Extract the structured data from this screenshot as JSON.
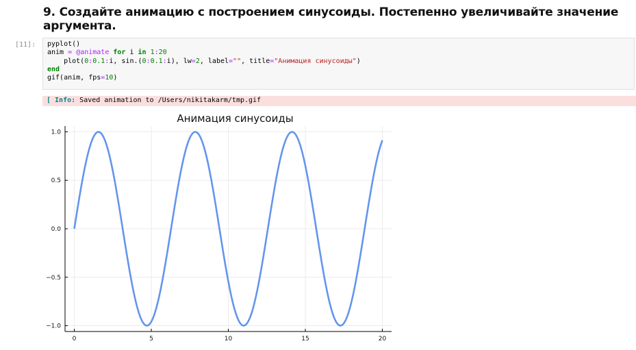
{
  "heading": "9. Создайте анимацию с построением синусоиды. Постепенно увеличивайте значение аргумента.",
  "cell": {
    "prompt": "[11]:",
    "code_lines": [
      [
        {
          "t": "pyplot()",
          "c": ""
        }
      ],
      [
        {
          "t": "anim ",
          "c": ""
        },
        {
          "t": "=",
          "c": "op"
        },
        {
          "t": " ",
          "c": ""
        },
        {
          "t": "@animate",
          "c": "macro"
        },
        {
          "t": " ",
          "c": ""
        },
        {
          "t": "for",
          "c": "kw"
        },
        {
          "t": " i ",
          "c": ""
        },
        {
          "t": "in",
          "c": "kw"
        },
        {
          "t": " ",
          "c": ""
        },
        {
          "t": "1",
          "c": "num"
        },
        {
          "t": ":",
          "c": "op"
        },
        {
          "t": "20",
          "c": "num"
        }
      ],
      [
        {
          "t": "    plot(",
          "c": ""
        },
        {
          "t": "0",
          "c": "num"
        },
        {
          "t": ":",
          "c": "op"
        },
        {
          "t": "0.1",
          "c": "num"
        },
        {
          "t": ":",
          "c": "op"
        },
        {
          "t": "i, sin.(",
          "c": ""
        },
        {
          "t": "0",
          "c": "num"
        },
        {
          "t": ":",
          "c": "op"
        },
        {
          "t": "0.1",
          "c": "num"
        },
        {
          "t": ":",
          "c": "op"
        },
        {
          "t": "i), lw",
          "c": ""
        },
        {
          "t": "=",
          "c": "op"
        },
        {
          "t": "2",
          "c": "num"
        },
        {
          "t": ", label",
          "c": ""
        },
        {
          "t": "=",
          "c": "op"
        },
        {
          "t": "\"\"",
          "c": "str"
        },
        {
          "t": ", title",
          "c": ""
        },
        {
          "t": "=",
          "c": "op"
        },
        {
          "t": "\"Анимация синусоиды\"",
          "c": "str"
        },
        {
          "t": ")",
          "c": ""
        }
      ],
      [
        {
          "t": "end",
          "c": "kw"
        }
      ],
      [
        {
          "t": "gif(anim, fps",
          "c": ""
        },
        {
          "t": "=",
          "c": "op"
        },
        {
          "t": "10",
          "c": "num"
        },
        {
          "t": ")",
          "c": ""
        }
      ]
    ]
  },
  "output": {
    "info_prefix": "[ Info:",
    "info_message": " Saved animation to /Users/nikitakarm/tmp.gif"
  },
  "chart_data": {
    "type": "line",
    "title": "Анимация синусоиды",
    "xlabel": "",
    "ylabel": "",
    "function": "sin(x)",
    "x_range": [
      0,
      20
    ],
    "x_step": 0.1,
    "xlim": [
      -0.6,
      20.6
    ],
    "ylim": [
      -1.06,
      1.06
    ],
    "x_ticks": [
      0,
      5,
      10,
      15,
      20
    ],
    "x_tick_labels": [
      "0",
      "5",
      "10",
      "15",
      "20"
    ],
    "y_ticks": [
      -1.0,
      -0.5,
      0.0,
      0.5,
      1.0
    ],
    "y_tick_labels": [
      "−1.0",
      "−0.5",
      "0.0",
      "0.5",
      "1.0"
    ],
    "grid": true,
    "legend": false,
    "line_color": "#6495ed",
    "series": [
      {
        "values_from": "sin(x)"
      }
    ]
  }
}
